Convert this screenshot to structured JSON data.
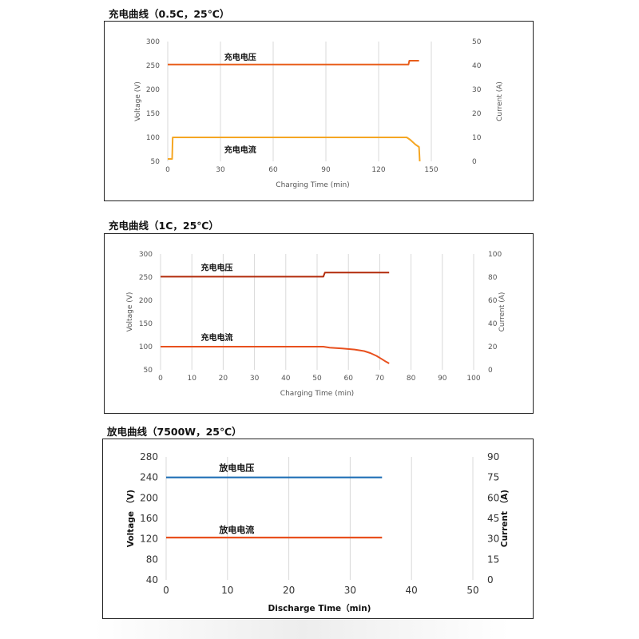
{
  "titles": {
    "chart1": "充电曲线（0.5C，25℃）",
    "chart2": "充电曲线（1C，25℃）",
    "chart3": "放电曲线（7500W，25℃）"
  },
  "chart_data": [
    {
      "type": "line",
      "title": "充电曲线（0.5C，25℃）",
      "xlabel": "Charging Time (min)",
      "ylabel": "Voltage (V)",
      "y2label": "Current (A)",
      "xlim": [
        0,
        165
      ],
      "xticks": [
        0,
        30,
        60,
        90,
        120,
        150
      ],
      "ylim": [
        50,
        300
      ],
      "yticks": [
        50,
        100,
        150,
        200,
        250,
        300
      ],
      "y2lim": [
        0,
        50
      ],
      "y2ticks": [
        0,
        10,
        20,
        30,
        40,
        50
      ],
      "grid": "vertical",
      "series": [
        {
          "name": "充电电压",
          "axis": "left",
          "color": "#E85D1A",
          "x": [
            0,
            137,
            137.5,
            143
          ],
          "y": [
            252,
            252,
            260,
            260
          ]
        },
        {
          "name": "充电电流",
          "axis": "right",
          "color": "#F5A623",
          "x": [
            0,
            2.5,
            2.8,
            136,
            138,
            141,
            143,
            143.4
          ],
          "y": [
            1,
            1,
            10,
            10,
            9,
            7,
            6,
            0
          ]
        }
      ]
    },
    {
      "type": "line",
      "title": "充电曲线（1C，25℃）",
      "xlabel": "Charging Time (min)",
      "ylabel": "Voltage (V)",
      "y2label": "Current (A)",
      "xlim": [
        0,
        100
      ],
      "xticks": [
        0,
        10,
        20,
        30,
        40,
        50,
        60,
        70,
        80,
        90,
        100
      ],
      "ylim": [
        50,
        300
      ],
      "yticks": [
        50,
        100,
        150,
        200,
        250,
        300
      ],
      "y2lim": [
        0,
        100
      ],
      "y2ticks": [
        0,
        20,
        40,
        60,
        80,
        100
      ],
      "grid": "vertical",
      "series": [
        {
          "name": "充电电压",
          "axis": "left",
          "color": "#B22A0A",
          "x": [
            0,
            52,
            52.5,
            73
          ],
          "y": [
            251,
            251,
            260,
            260
          ]
        },
        {
          "name": "充电电流",
          "axis": "right",
          "color": "#E8501E",
          "x": [
            0,
            52,
            54,
            58,
            62,
            65,
            67,
            69,
            70.5,
            72,
            73
          ],
          "y": [
            20,
            20,
            19.2,
            18.5,
            17.5,
            16.2,
            14.5,
            12,
            9.5,
            7,
            5.5
          ]
        }
      ]
    },
    {
      "type": "line",
      "title": "放电曲线（7500W，25℃）",
      "xlabel": "Discharge Time（min)",
      "ylabel": "Voltage （V)",
      "y2label": "Current （A)",
      "xlim": [
        0,
        50
      ],
      "xticks": [
        0,
        10,
        20,
        30,
        40,
        50
      ],
      "ylim": [
        40,
        280
      ],
      "yticks": [
        40,
        80,
        120,
        160,
        200,
        240,
        280
      ],
      "y2lim": [
        0,
        90
      ],
      "y2ticks": [
        0,
        15,
        30,
        45,
        60,
        75,
        90
      ],
      "grid": "vertical",
      "series": [
        {
          "name": "放电电压",
          "axis": "left",
          "color": "#1F6FB5",
          "x": [
            0,
            35.2
          ],
          "y": [
            240,
            240
          ]
        },
        {
          "name": "放电电流",
          "axis": "right",
          "color": "#E8501E",
          "x": [
            0,
            35.2
          ],
          "y": [
            31,
            31
          ]
        }
      ]
    }
  ]
}
